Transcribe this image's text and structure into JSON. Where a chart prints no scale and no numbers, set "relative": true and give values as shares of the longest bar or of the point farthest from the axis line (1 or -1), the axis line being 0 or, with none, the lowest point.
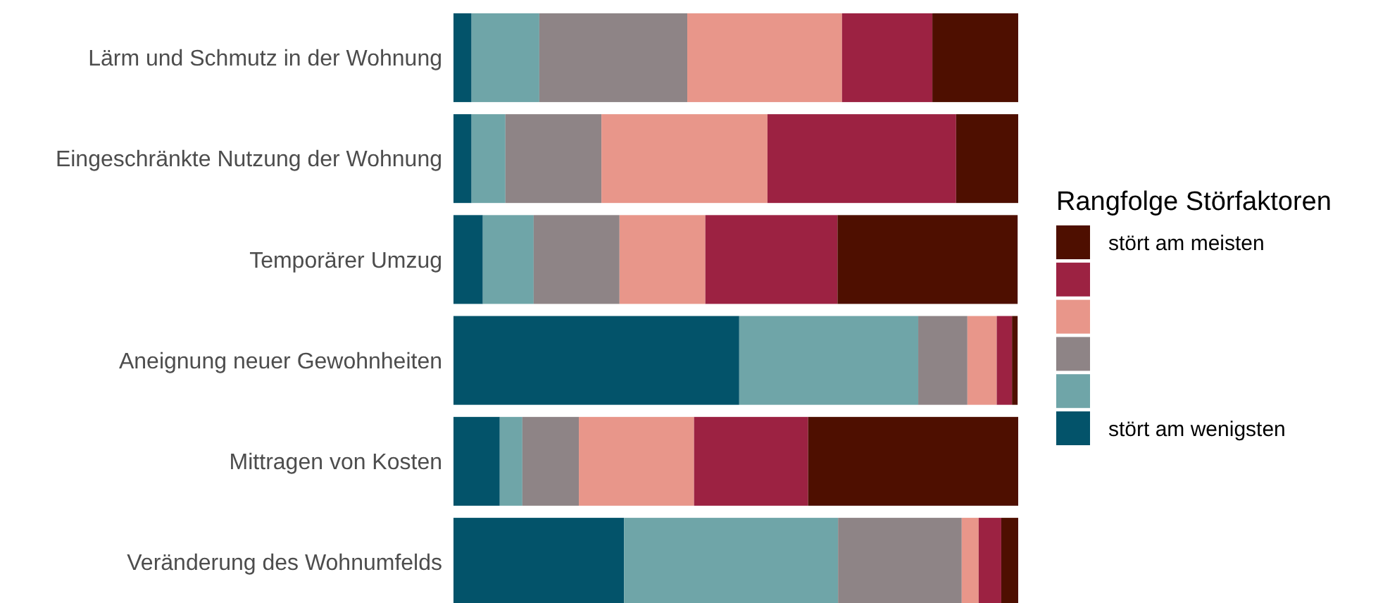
{
  "chart_data": {
    "type": "bar",
    "orientation": "horizontal",
    "stacked": true,
    "relative": true,
    "legend": "right",
    "legend_title": "Rangfolge Störfaktoren",
    "categories": [
      "Lärm und Schmutz in der Wohnung",
      "Eingeschränkte Nutzung der Wohnung",
      "Temporärer Umzug",
      "Aneignung neuer Gewohnheiten",
      "Mittragen von Kosten",
      "Veränderung des Wohnumfelds"
    ],
    "series": [
      {
        "name": "stört am wenigsten",
        "color": "#03536a",
        "values": [
          0.032,
          0.032,
          0.052,
          0.506,
          0.082,
          0.302
        ]
      },
      {
        "color": "#6fa5a8",
        "values": [
          0.12,
          0.06,
          0.09,
          0.317,
          0.04,
          0.379
        ]
      },
      {
        "color": "#8e8486",
        "values": [
          0.262,
          0.17,
          0.152,
          0.087,
          0.1,
          0.219
        ]
      },
      {
        "color": "#e8968a",
        "values": [
          0.274,
          0.294,
          0.152,
          0.052,
          0.204,
          0.03
        ]
      },
      {
        "color": "#9c2242",
        "values": [
          0.16,
          0.334,
          0.234,
          0.027,
          0.202,
          0.04
        ]
      },
      {
        "name": "stört am meisten",
        "color": "#4e0f00",
        "values": [
          0.152,
          0.11,
          0.319,
          0.01,
          0.372,
          0.03
        ]
      }
    ]
  }
}
